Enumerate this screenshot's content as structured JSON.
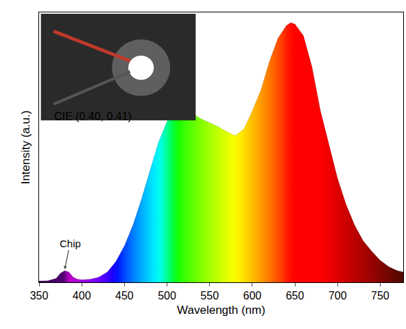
{
  "chart_data": {
    "type": "area",
    "x_label": "Wavelength (nm)",
    "y_label": "Intensity (a.u.)",
    "x": [
      350,
      360,
      370,
      375,
      380,
      385,
      390,
      395,
      400,
      410,
      420,
      430,
      440,
      450,
      460,
      470,
      480,
      490,
      500,
      510,
      520,
      530,
      540,
      550,
      560,
      570,
      580,
      590,
      600,
      610,
      620,
      630,
      640,
      645,
      650,
      660,
      670,
      680,
      690,
      700,
      710,
      720,
      730,
      740,
      750,
      760,
      770,
      777
    ],
    "values": [
      0.5,
      0.6,
      1.5,
      3.5,
      4.5,
      4,
      2,
      1.2,
      1,
      1.2,
      2,
      4,
      8,
      14,
      22,
      32,
      43,
      54,
      62,
      66,
      66.5,
      65,
      63,
      61.5,
      60,
      58,
      56.5,
      59,
      66,
      74,
      85,
      94,
      99,
      100,
      99.5,
      95,
      83,
      66,
      53,
      40,
      30,
      22,
      16,
      12,
      8.5,
      6,
      4.5,
      4
    ],
    "xlim": [
      350,
      777
    ],
    "ylim": [
      0,
      104
    ],
    "xticks": [
      350,
      400,
      450,
      500,
      550,
      600,
      650,
      700,
      750
    ],
    "yticks": [],
    "tick_labels": "x",
    "grid": false,
    "annotations": [
      {
        "text": "Chip",
        "x": 380,
        "y": 5
      },
      {
        "text": "CIE (0.40, 0.41)",
        "x": 366,
        "y": 64
      }
    ]
  }
}
